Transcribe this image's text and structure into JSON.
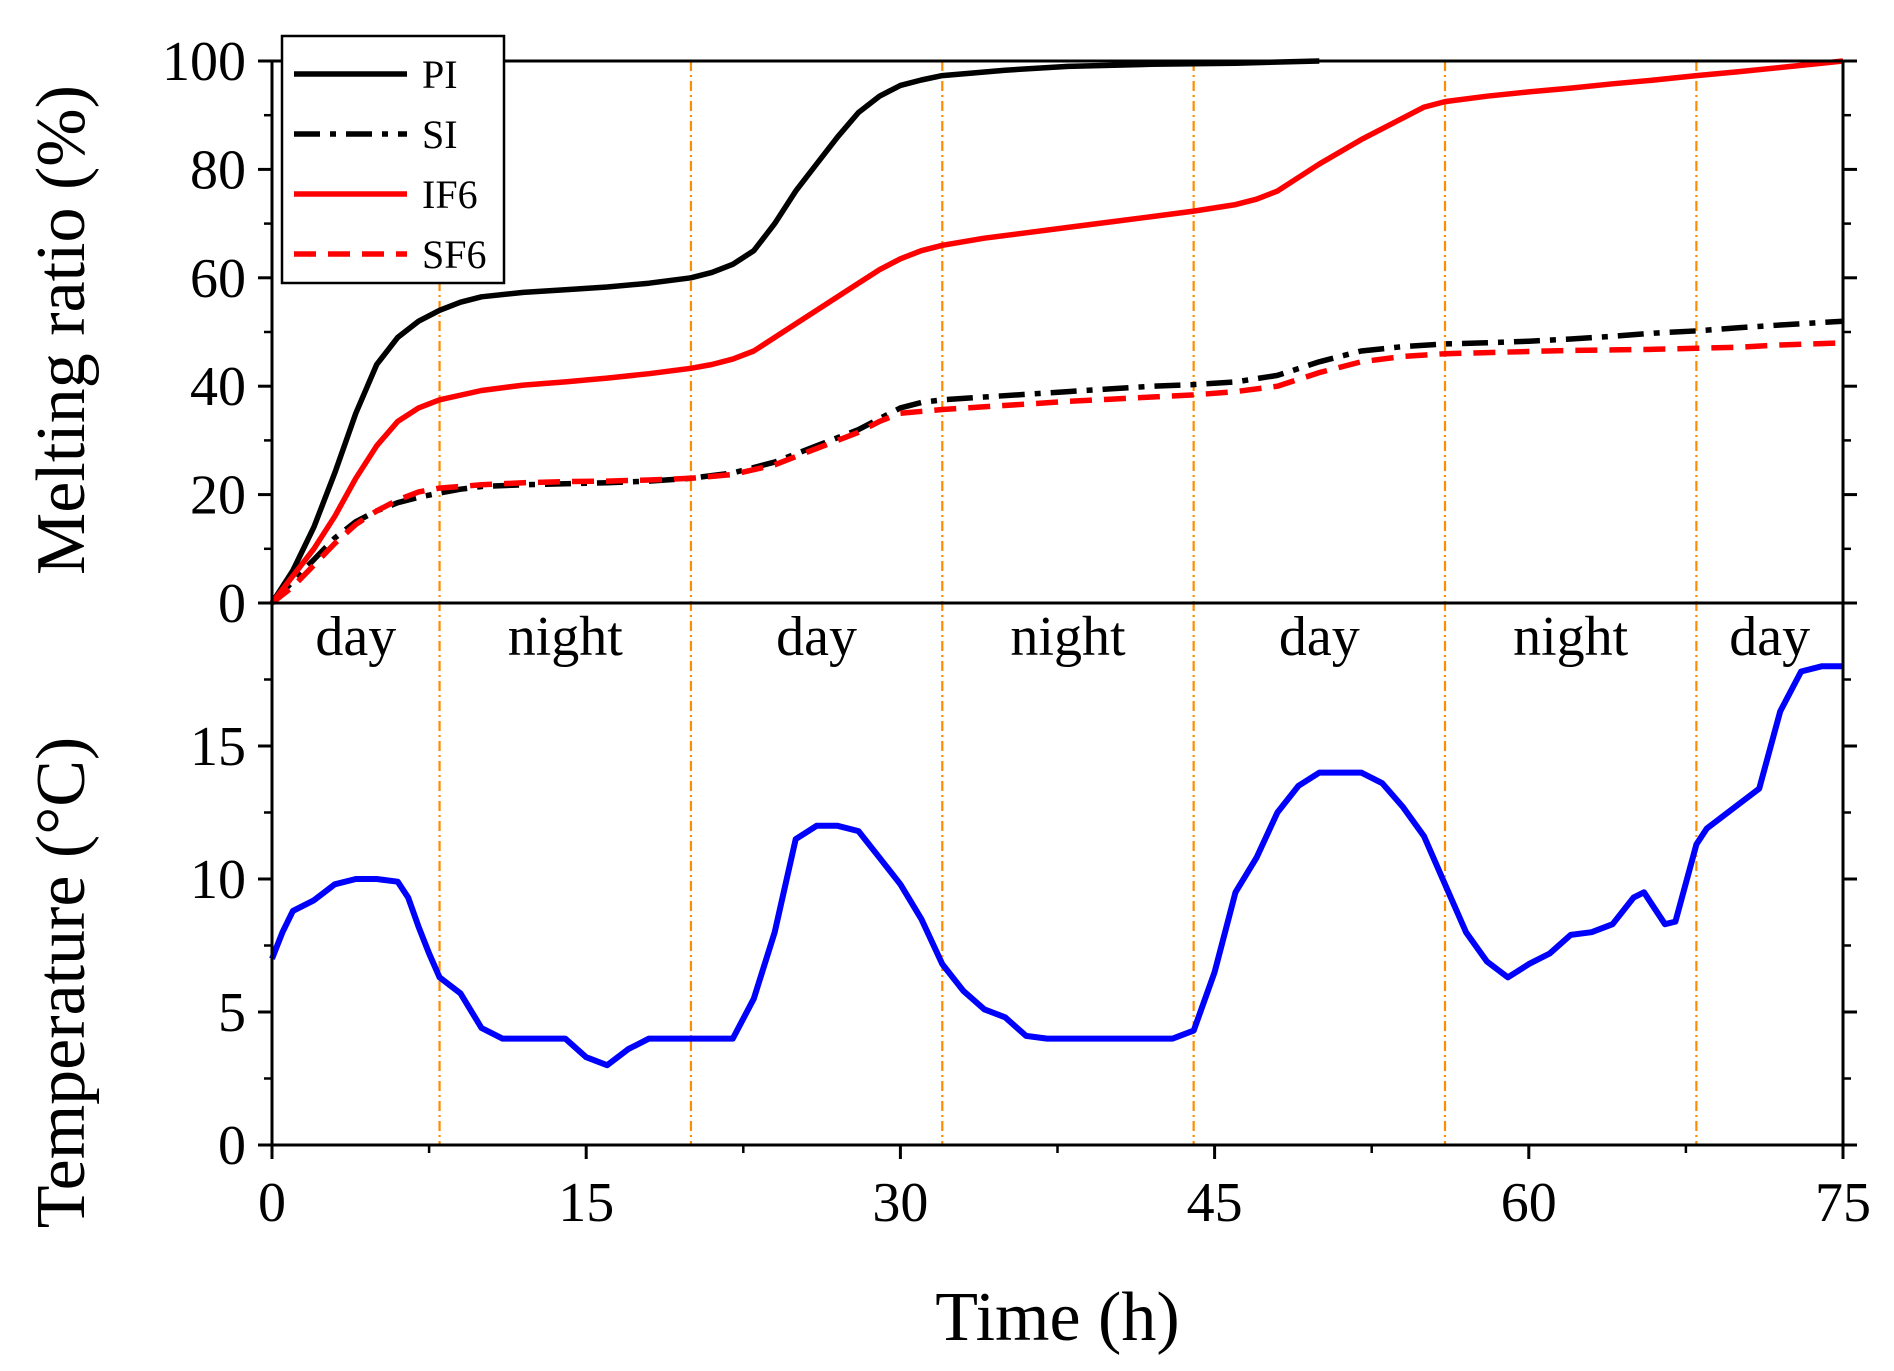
{
  "chart_data": [
    {
      "type": "line",
      "panel": "top",
      "ylabel": "Melting ratio (%)",
      "ylim": [
        0,
        100
      ],
      "yticks": [
        "0",
        "20",
        "40",
        "60",
        "80",
        "100"
      ],
      "legend": {
        "placement": "top-left",
        "entries": [
          "PI",
          "SI",
          "IF6",
          "SF6"
        ]
      },
      "series": [
        {
          "name": "PI",
          "color": "#000000",
          "style": "solid",
          "points": [
            [
              0,
              0
            ],
            [
              1,
              6
            ],
            [
              2,
              14
            ],
            [
              3,
              24
            ],
            [
              4,
              35
            ],
            [
              5,
              44
            ],
            [
              6,
              49
            ],
            [
              7,
              52
            ],
            [
              8,
              54
            ],
            [
              9,
              55.5
            ],
            [
              10,
              56.5
            ],
            [
              12,
              57.3
            ],
            [
              14,
              57.8
            ],
            [
              16,
              58.3
            ],
            [
              18,
              59
            ],
            [
              20,
              60
            ],
            [
              21,
              61
            ],
            [
              22,
              62.5
            ],
            [
              23,
              65
            ],
            [
              24,
              70
            ],
            [
              25,
              76
            ],
            [
              26,
              81
            ],
            [
              27,
              86
            ],
            [
              28,
              90.5
            ],
            [
              29,
              93.5
            ],
            [
              30,
              95.5
            ],
            [
              31,
              96.5
            ],
            [
              32,
              97.3
            ],
            [
              35,
              98.3
            ],
            [
              38,
              99
            ],
            [
              42,
              99.4
            ],
            [
              46,
              99.6
            ],
            [
              50,
              100
            ]
          ]
        },
        {
          "name": "SI",
          "color": "#000000",
          "style": "dashdot",
          "points": [
            [
              0,
              0
            ],
            [
              1,
              4
            ],
            [
              2,
              8
            ],
            [
              3,
              12
            ],
            [
              4,
              15
            ],
            [
              5,
              17
            ],
            [
              6,
              18.5
            ],
            [
              7,
              19.5
            ],
            [
              8,
              20.3
            ],
            [
              9,
              21
            ],
            [
              10,
              21.5
            ],
            [
              12,
              21.8
            ],
            [
              14,
              22
            ],
            [
              16,
              22.2
            ],
            [
              18,
              22.5
            ],
            [
              20,
              23
            ],
            [
              22,
              24
            ],
            [
              24,
              26
            ],
            [
              26,
              29
            ],
            [
              28,
              32
            ],
            [
              29,
              34
            ],
            [
              30,
              36
            ],
            [
              31,
              37
            ],
            [
              32,
              37.5
            ],
            [
              34,
              38
            ],
            [
              36,
              38.5
            ],
            [
              38,
              39
            ],
            [
              40,
              39.5
            ],
            [
              42,
              40
            ],
            [
              44,
              40.3
            ],
            [
              46,
              40.8
            ],
            [
              48,
              42
            ],
            [
              50,
              44.5
            ],
            [
              52,
              46.5
            ],
            [
              54,
              47.3
            ],
            [
              56,
              47.8
            ],
            [
              58,
              48
            ],
            [
              60,
              48.3
            ],
            [
              62,
              48.7
            ],
            [
              64,
              49.2
            ],
            [
              66,
              49.8
            ],
            [
              68,
              50.2
            ],
            [
              70,
              50.8
            ],
            [
              72,
              51.3
            ],
            [
              75,
              52
            ]
          ]
        },
        {
          "name": "IF6",
          "color": "#ff0000",
          "style": "solid",
          "points": [
            [
              0,
              0
            ],
            [
              1,
              5
            ],
            [
              2,
              10
            ],
            [
              3,
              16
            ],
            [
              4,
              23
            ],
            [
              5,
              29
            ],
            [
              6,
              33.5
            ],
            [
              7,
              36
            ],
            [
              8,
              37.5
            ],
            [
              10,
              39.2
            ],
            [
              12,
              40.2
            ],
            [
              14,
              40.8
            ],
            [
              16,
              41.5
            ],
            [
              18,
              42.3
            ],
            [
              20,
              43.3
            ],
            [
              21,
              44
            ],
            [
              22,
              45
            ],
            [
              23,
              46.5
            ],
            [
              24,
              49
            ],
            [
              26,
              54
            ],
            [
              28,
              59
            ],
            [
              29,
              61.5
            ],
            [
              30,
              63.5
            ],
            [
              31,
              65
            ],
            [
              32,
              66
            ],
            [
              34,
              67.3
            ],
            [
              36,
              68.3
            ],
            [
              38,
              69.3
            ],
            [
              40,
              70.3
            ],
            [
              42,
              71.3
            ],
            [
              44,
              72.3
            ],
            [
              46,
              73.5
            ],
            [
              47,
              74.5
            ],
            [
              48,
              76
            ],
            [
              49,
              78.5
            ],
            [
              50,
              81
            ],
            [
              52,
              85.5
            ],
            [
              54,
              89.5
            ],
            [
              55,
              91.5
            ],
            [
              56,
              92.5
            ],
            [
              58,
              93.5
            ],
            [
              60,
              94.3
            ],
            [
              62,
              95
            ],
            [
              64,
              95.8
            ],
            [
              66,
              96.5
            ],
            [
              68,
              97.3
            ],
            [
              70,
              98
            ],
            [
              72,
              98.8
            ],
            [
              75,
              100
            ]
          ]
        },
        {
          "name": "SF6",
          "color": "#ff0000",
          "style": "dashed",
          "points": [
            [
              0,
              0
            ],
            [
              1,
              3
            ],
            [
              2,
              7
            ],
            [
              3,
              11
            ],
            [
              4,
              14.5
            ],
            [
              5,
              17
            ],
            [
              6,
              19
            ],
            [
              7,
              20.5
            ],
            [
              8,
              21.2
            ],
            [
              10,
              21.8
            ],
            [
              12,
              22.2
            ],
            [
              14,
              22.4
            ],
            [
              16,
              22.5
            ],
            [
              18,
              22.7
            ],
            [
              20,
              23
            ],
            [
              22,
              23.7
            ],
            [
              24,
              25.5
            ],
            [
              26,
              28.5
            ],
            [
              28,
              31.5
            ],
            [
              29,
              33.5
            ],
            [
              30,
              35
            ],
            [
              32,
              35.7
            ],
            [
              34,
              36.2
            ],
            [
              36,
              36.7
            ],
            [
              38,
              37.2
            ],
            [
              40,
              37.6
            ],
            [
              42,
              38
            ],
            [
              44,
              38.4
            ],
            [
              46,
              39
            ],
            [
              48,
              40
            ],
            [
              50,
              42.5
            ],
            [
              52,
              44.5
            ],
            [
              54,
              45.5
            ],
            [
              56,
              46
            ],
            [
              58,
              46.2
            ],
            [
              60,
              46.4
            ],
            [
              62,
              46.6
            ],
            [
              64,
              46.7
            ],
            [
              66,
              46.8
            ],
            [
              68,
              47
            ],
            [
              70,
              47.2
            ],
            [
              72,
              47.6
            ],
            [
              75,
              48
            ]
          ]
        }
      ]
    },
    {
      "type": "line",
      "panel": "bottom",
      "ylabel": "Temperature (°C)",
      "ylim": [
        0,
        20
      ],
      "yticks": [
        "0",
        "5",
        "10",
        "15"
      ],
      "series": [
        {
          "name": "Temperature",
          "color": "#0000ff",
          "style": "solid",
          "points": [
            [
              0,
              7
            ],
            [
              0.5,
              8
            ],
            [
              1,
              8.8
            ],
            [
              2,
              9.2
            ],
            [
              3,
              9.8
            ],
            [
              4,
              10
            ],
            [
              5,
              10
            ],
            [
              6,
              9.9
            ],
            [
              6.5,
              9.3
            ],
            [
              7,
              8.2
            ],
            [
              7.5,
              7.2
            ],
            [
              8,
              6.3
            ],
            [
              8.5,
              6
            ],
            [
              9,
              5.7
            ],
            [
              10,
              4.4
            ],
            [
              11,
              4
            ],
            [
              13,
              4
            ],
            [
              14,
              4
            ],
            [
              15,
              3.3
            ],
            [
              16,
              3
            ],
            [
              17,
              3.6
            ],
            [
              18,
              4
            ],
            [
              20,
              4
            ],
            [
              22,
              4
            ],
            [
              23,
              5.5
            ],
            [
              24,
              8
            ],
            [
              25,
              11.5
            ],
            [
              26,
              12
            ],
            [
              27,
              12
            ],
            [
              28,
              11.8
            ],
            [
              29,
              10.8
            ],
            [
              30,
              9.8
            ],
            [
              31,
              8.5
            ],
            [
              32,
              6.8
            ],
            [
              33,
              5.8
            ],
            [
              34,
              5.1
            ],
            [
              35,
              4.8
            ],
            [
              36,
              4.1
            ],
            [
              37,
              4
            ],
            [
              40,
              4
            ],
            [
              43,
              4
            ],
            [
              44,
              4.3
            ],
            [
              45,
              6.5
            ],
            [
              46,
              9.5
            ],
            [
              47,
              10.8
            ],
            [
              48,
              12.5
            ],
            [
              49,
              13.5
            ],
            [
              50,
              14
            ],
            [
              51,
              14
            ],
            [
              52,
              14
            ],
            [
              53,
              13.6
            ],
            [
              54,
              12.7
            ],
            [
              55,
              11.6
            ],
            [
              56,
              9.8
            ],
            [
              57,
              8
            ],
            [
              58,
              6.9
            ],
            [
              59,
              6.3
            ],
            [
              60,
              6.8
            ],
            [
              61,
              7.2
            ],
            [
              62,
              7.9
            ],
            [
              63,
              8
            ],
            [
              64,
              8.3
            ],
            [
              65,
              9.3
            ],
            [
              65.5,
              9.5
            ],
            [
              66,
              8.9
            ],
            [
              66.5,
              8.3
            ],
            [
              67,
              8.4
            ],
            [
              68,
              11.3
            ],
            [
              68.5,
              11.9
            ],
            [
              69,
              12.2
            ],
            [
              70,
              12.8
            ],
            [
              71,
              13.4
            ],
            [
              72,
              16.3
            ],
            [
              73,
              17.8
            ],
            [
              74,
              18
            ],
            [
              75,
              18
            ]
          ]
        }
      ]
    },
    {
      "type": "axes",
      "panel": "shared-x",
      "xlabel": "Time (h)",
      "xlim": [
        0,
        75
      ],
      "xticks": [
        "0",
        "15",
        "30",
        "45",
        "60",
        "75"
      ],
      "period_boundaries_h": [
        8,
        20,
        32,
        44,
        56,
        68
      ],
      "period_labels": [
        "day",
        "night",
        "day",
        "night",
        "day",
        "night",
        "day"
      ],
      "boundary_color": "#ff8c00"
    }
  ]
}
